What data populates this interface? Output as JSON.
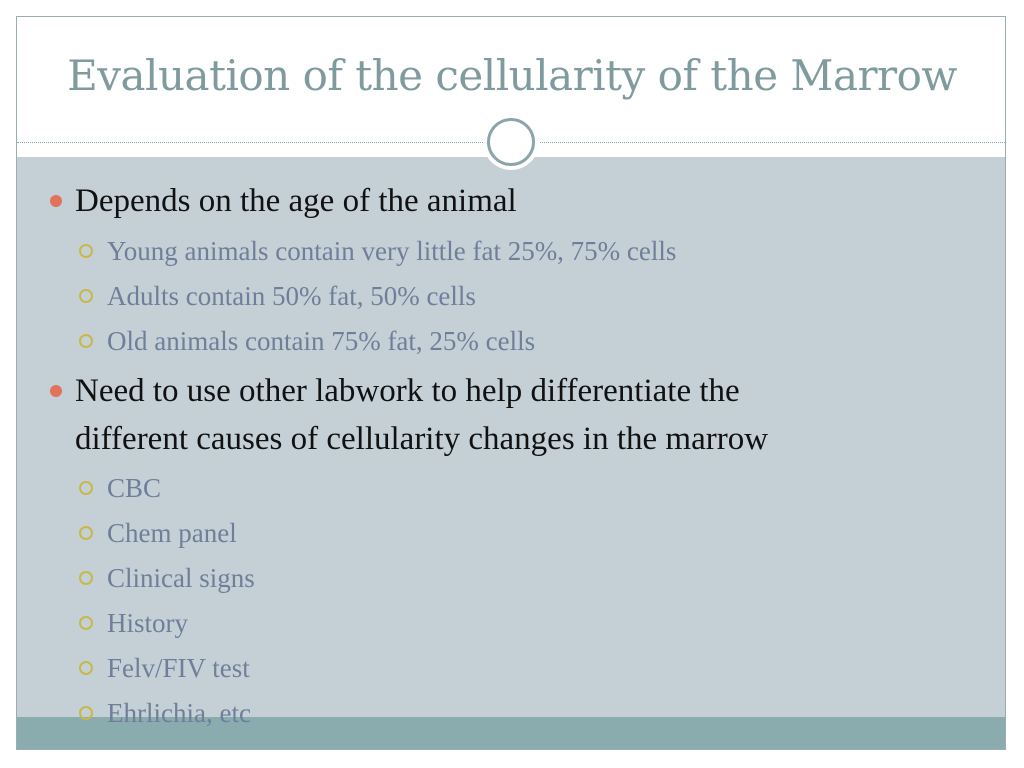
{
  "slide": {
    "title": "Evaluation of the cellularity of the Marrow",
    "bullets": [
      {
        "text": "Depends on the age of the animal",
        "subitems": [
          "Young animals contain very little fat 25%, 75% cells",
          "Adults contain 50% fat, 50% cells",
          "Old animals contain 75% fat, 25% cells"
        ]
      },
      {
        "text_line1": "Need to use other labwork to help differentiate the",
        "text_line2": "different causes of cellularity changes in the marrow",
        "subitems": [
          "CBC",
          "Chem panel",
          "Clinical signs",
          "History",
          "Felv/FIV test",
          "Ehrlichia, etc"
        ]
      }
    ]
  },
  "colors": {
    "title": "#7f9b9e",
    "body_background": "#c4d0d6",
    "footer_band": "#8aacae",
    "level1_bullet": "#e0735a",
    "level2_bullet": "#c8b84a",
    "level1_text": "#111111",
    "level2_text": "#6f7f9a"
  },
  "icons": {
    "level1_bullet": "filled-circle-icon",
    "level2_bullet": "hollow-circle-icon",
    "ornament": "ring-ornament-icon"
  }
}
